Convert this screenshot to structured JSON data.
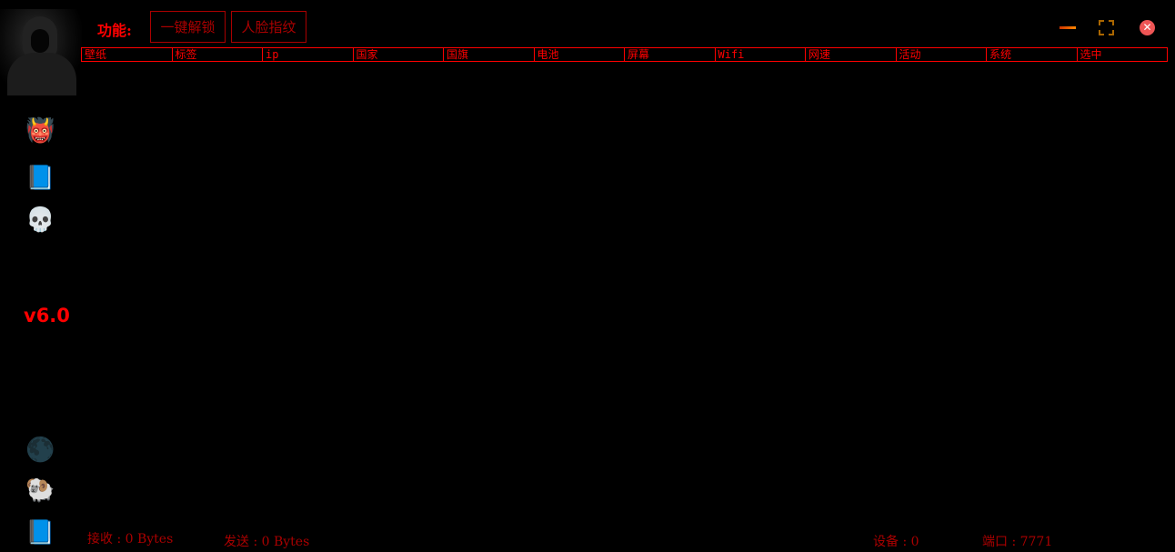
{
  "toolbar": {
    "label": "功能:",
    "buttons": [
      "一键解锁",
      "人脸指纹"
    ]
  },
  "table": {
    "columns": [
      "壁纸",
      "标签",
      "ip",
      "国家",
      "国旗",
      "电池",
      "屏幕",
      "Wifi",
      "网速",
      "活动",
      "系统",
      "选中"
    ]
  },
  "window": {
    "minimize_icon": "minimize-icon",
    "maximize_icon": "maximize-icon",
    "close_icon": "close-icon",
    "close_glyph": "✕"
  },
  "sidebar": {
    "version": "v6.0",
    "icons": [
      "demon-icon",
      "ghost-book-icon",
      "reaper-icon",
      "moon-icon",
      "ram-icon",
      "ghost-book-icon"
    ]
  },
  "status": {
    "received": "接收 : 0 Bytes",
    "sent": "发送 : 0 Bytes",
    "devices": "设备 : 0",
    "port": "端口 : 7771"
  },
  "colors": {
    "accent": "#ff0000",
    "dim": "#aa0000"
  }
}
